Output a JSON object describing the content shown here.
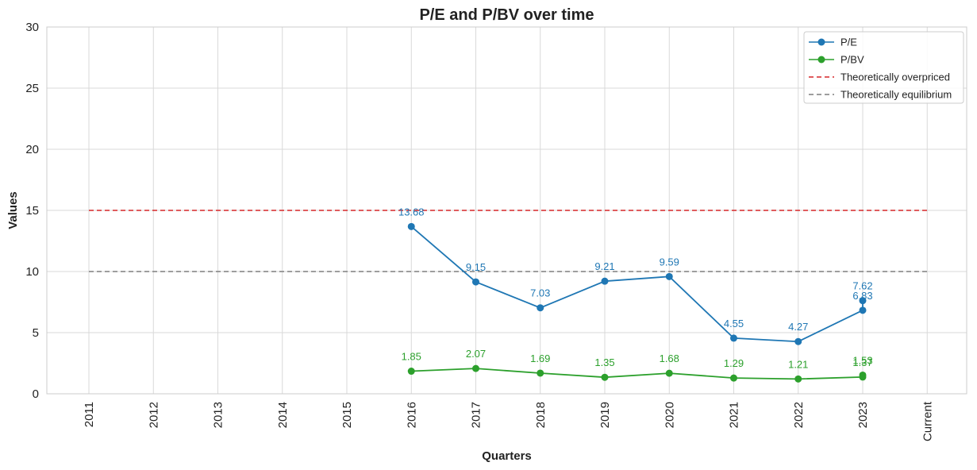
{
  "chart_data": {
    "type": "line",
    "title": "P/E and P/BV over time",
    "xlabel": "Quarters",
    "ylabel": "Values",
    "ylim": [
      0,
      30
    ],
    "yticks": [
      0,
      5,
      10,
      15,
      20,
      25,
      30
    ],
    "categories": [
      "2011",
      "2012",
      "2013",
      "2014",
      "2015",
      "2016",
      "2017",
      "2018",
      "2019",
      "2020",
      "2021",
      "2022",
      "2023",
      "Current"
    ],
    "grid": true,
    "legend_position": "top-right",
    "series": [
      {
        "name": "P/E",
        "color": "#1f77b4",
        "style": "line-marker",
        "points": [
          {
            "x": "2016",
            "y": 13.68,
            "label": "13.68"
          },
          {
            "x": "2017",
            "y": 9.15,
            "label": "9.15"
          },
          {
            "x": "2018",
            "y": 7.03,
            "label": "7.03"
          },
          {
            "x": "2019",
            "y": 9.21,
            "label": "9.21"
          },
          {
            "x": "2020",
            "y": 9.59,
            "label": "9.59"
          },
          {
            "x": "2021",
            "y": 4.55,
            "label": "4.55"
          },
          {
            "x": "2022",
            "y": 4.27,
            "label": "4.27"
          },
          {
            "x": "2023",
            "y": 6.83,
            "label": "6.83"
          },
          {
            "x": "2023",
            "y": 7.62,
            "label": "7.62"
          }
        ]
      },
      {
        "name": "P/BV",
        "color": "#2ca02c",
        "style": "line-marker",
        "points": [
          {
            "x": "2016",
            "y": 1.85,
            "label": "1.85"
          },
          {
            "x": "2017",
            "y": 2.07,
            "label": "2.07"
          },
          {
            "x": "2018",
            "y": 1.69,
            "label": "1.69"
          },
          {
            "x": "2019",
            "y": 1.35,
            "label": "1.35"
          },
          {
            "x": "2020",
            "y": 1.68,
            "label": "1.68"
          },
          {
            "x": "2021",
            "y": 1.29,
            "label": "1.29"
          },
          {
            "x": "2022",
            "y": 1.21,
            "label": "1.21"
          },
          {
            "x": "2023",
            "y": 1.37,
            "label": "1.37"
          },
          {
            "x": "2023",
            "y": 1.53,
            "label": "1.53"
          }
        ]
      },
      {
        "name": "Theoretically overpriced",
        "color": "#d62728",
        "style": "dashed",
        "points": [
          {
            "x": "2011",
            "y": 15
          },
          {
            "x": "Current",
            "y": 15
          }
        ]
      },
      {
        "name": "Theoretically equilibrium",
        "color": "#7f7f7f",
        "style": "dashed",
        "points": [
          {
            "x": "2011",
            "y": 10
          },
          {
            "x": "Current",
            "y": 10
          }
        ]
      }
    ]
  }
}
